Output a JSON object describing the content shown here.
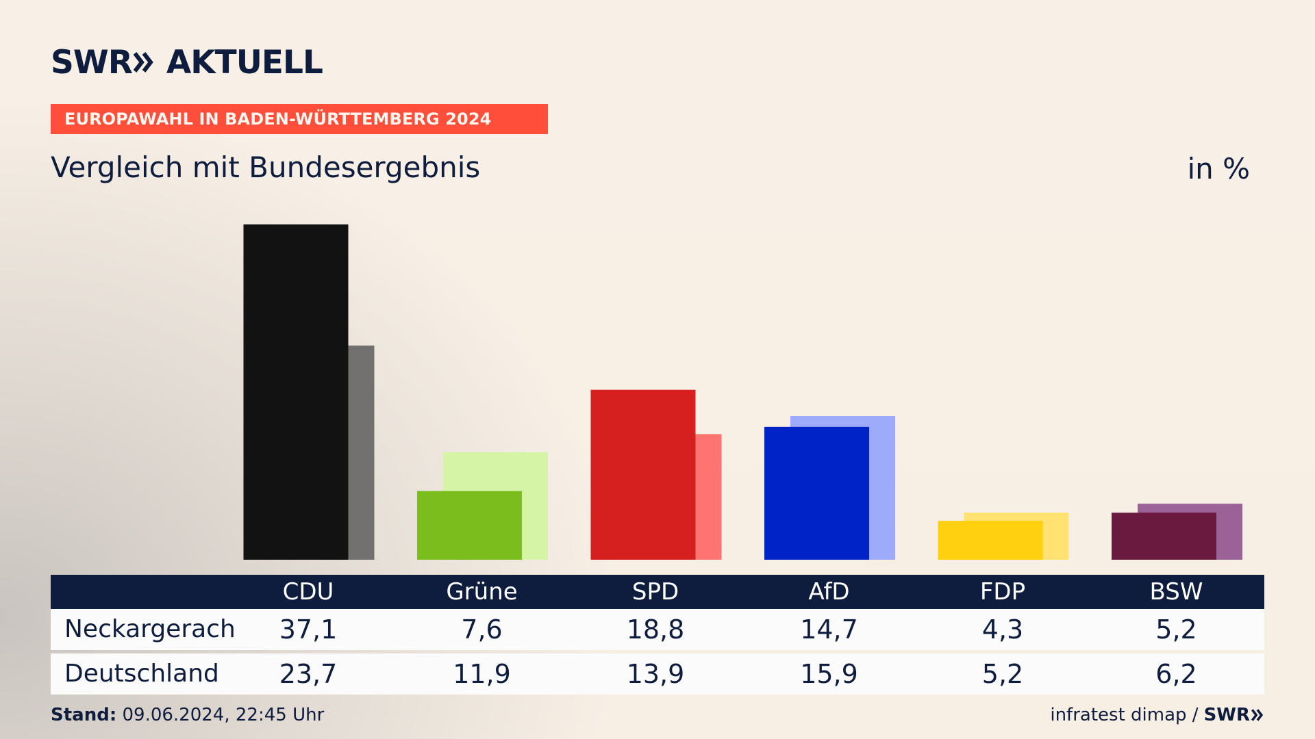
{
  "logo": {
    "brand": "SWR",
    "product": "AKTUELL"
  },
  "badge": "EUROPAWAHL IN BADEN-WÜRTTEMBERG 2024",
  "subtitle": "Vergleich mit Bundesergebnis",
  "unit": "in %",
  "table": {
    "parties": [
      "CDU",
      "Grüne",
      "SPD",
      "AfD",
      "FDP",
      "BSW"
    ],
    "rows": [
      {
        "label": "Neckargerach",
        "values": [
          "37,1",
          "7,6",
          "18,8",
          "14,7",
          "4,3",
          "5,2"
        ]
      },
      {
        "label": "Deutschland",
        "values": [
          "23,7",
          "11,9",
          "13,9",
          "15,9",
          "5,2",
          "6,2"
        ]
      }
    ]
  },
  "footer": {
    "stand_label": "Stand:",
    "stand_value": "09.06.2024, 22:45 Uhr",
    "source": "infratest dimap /",
    "brand": "SWR"
  },
  "colors": {
    "navy": "#0e1c3d",
    "badge": "#ff4f3b",
    "CDU": [
      "#121212",
      "#727170"
    ],
    "Grüne": [
      "#7abd1d",
      "#d6f4a6"
    ],
    "SPD": [
      "#d6201f",
      "#ff7470"
    ],
    "AfD": [
      "#0023c7",
      "#9eabfb"
    ],
    "FDP": [
      "#ffd00f",
      "#ffe272"
    ],
    "BSW": [
      "#6a1a3e",
      "#9b6297"
    ]
  },
  "chart_data": {
    "type": "bar",
    "categories": [
      "CDU",
      "Grüne",
      "SPD",
      "AfD",
      "FDP",
      "BSW"
    ],
    "series": [
      {
        "name": "Neckargerach",
        "values": [
          37.1,
          7.6,
          18.8,
          14.7,
          4.3,
          5.2
        ]
      },
      {
        "name": "Deutschland",
        "values": [
          23.7,
          11.9,
          13.9,
          15.9,
          5.2,
          6.2
        ]
      }
    ],
    "title": "Vergleich mit Bundesergebnis",
    "ylabel": "in %",
    "ylim": [
      0,
      37.1
    ],
    "grid": false,
    "legend": "table-below"
  }
}
